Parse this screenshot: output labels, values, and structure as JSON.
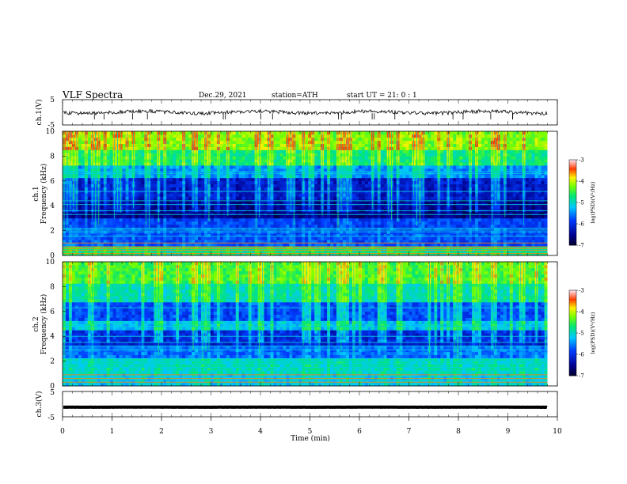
{
  "header": {
    "title": "VLF  Spectra",
    "date": "Dec.29, 2021",
    "station": "station=ATH",
    "start": "start  UT  =    21: 0   : 1"
  },
  "chart_data": [
    {
      "type": "line",
      "panel": "ch1-waveform",
      "ylabel": "ch.1(V)",
      "ylim": [
        -5,
        5
      ],
      "yticks": [
        "5",
        "-5"
      ],
      "xlim": [
        0,
        10
      ],
      "x_end": 9.8,
      "baseline": 0,
      "color": "#000000"
    },
    {
      "type": "heatmap",
      "panel": "ch1-spectrogram",
      "ylabel": "ch.1\nFrequency  (kHz)",
      "ylim": [
        0,
        10
      ],
      "yticks": [
        "0",
        "2",
        "4",
        "6",
        "8",
        "10"
      ],
      "xlim": [
        0,
        10
      ],
      "x_end": 9.8,
      "colorbar": {
        "label": "log(PSD)(V²/Hz)",
        "ticks": [
          "-3",
          "-4",
          "-5",
          "-6",
          "-7"
        ],
        "range": [
          -7,
          -3
        ]
      },
      "lines_khz": [
        0.15,
        0.4,
        0.55,
        0.7,
        1.0,
        1.55,
        1.9,
        2.05,
        2.2,
        3.3,
        3.6,
        4.1,
        4.4,
        5.15,
        6.6,
        6.75
      ]
    },
    {
      "type": "heatmap",
      "panel": "ch2-spectrogram",
      "ylabel": "ch.2\nFrequency  (kHz)",
      "ylim": [
        0,
        10
      ],
      "yticks": [
        "0",
        "2",
        "4",
        "6",
        "8",
        "10"
      ],
      "xlim": [
        0,
        10
      ],
      "x_end": 9.8,
      "colorbar": {
        "label": "log(PSD)(V²/Hz)",
        "ticks": [
          "-3",
          "-4",
          "-5",
          "-6",
          "-7"
        ],
        "range": [
          -7,
          -3
        ]
      },
      "lines_khz": [
        0.3,
        0.6,
        0.9,
        1.2,
        1.5,
        1.8,
        2.0,
        2.2,
        2.9,
        3.2,
        3.5,
        4.0,
        4.8,
        6.3
      ]
    },
    {
      "type": "line",
      "panel": "ch3-waveform",
      "ylabel": "ch.3(V)",
      "ylim": [
        -5,
        5
      ],
      "yticks": [
        "5",
        "-5"
      ],
      "xlim": [
        0,
        10
      ],
      "x_end": 9.8,
      "baseline": -1.2,
      "color": "#000000"
    }
  ],
  "xaxis": {
    "label": "Time  (min)",
    "ticks": [
      "0",
      "1",
      "2",
      "3",
      "4",
      "5",
      "6",
      "7",
      "8",
      "9",
      "10"
    ]
  }
}
